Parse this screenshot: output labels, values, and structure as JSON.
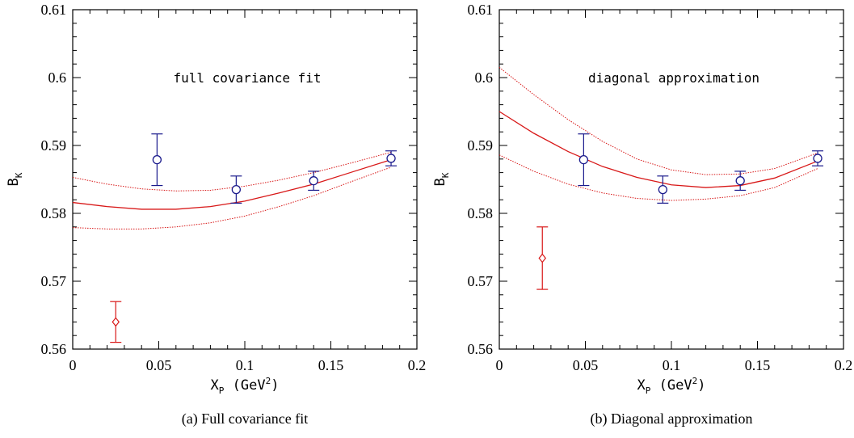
{
  "chart_data": [
    {
      "type": "scatter",
      "annotation": "full covariance fit",
      "caption": "(a)  Full covariance fit",
      "xlabel": {
        "main": "X",
        "sub": "P",
        "units_pre": " (GeV",
        "units_sup": "2",
        "units_post": ")"
      },
      "ylabel": {
        "main": "B",
        "sub": "K"
      },
      "xlim": [
        0,
        0.2
      ],
      "ylim": [
        0.56,
        0.61
      ],
      "x_ticks": [
        0,
        0.05,
        0.1,
        0.15,
        0.2
      ],
      "x_tick_labels": [
        "0",
        "0.05",
        "0.1",
        "0.15",
        "0.2"
      ],
      "y_ticks": [
        0.56,
        0.57,
        0.58,
        0.59,
        0.6,
        0.61
      ],
      "y_tick_labels": [
        "0.56",
        "0.57",
        "0.58",
        "0.59",
        "0.6",
        "0.61"
      ],
      "data_points": [
        {
          "x": 0.049,
          "y": 0.5879,
          "err": 0.0038
        },
        {
          "x": 0.095,
          "y": 0.5835,
          "err": 0.002
        },
        {
          "x": 0.14,
          "y": 0.5848,
          "err": 0.0014
        },
        {
          "x": 0.185,
          "y": 0.5881,
          "err": 0.0011
        }
      ],
      "extrapolated_point": {
        "x": 0.025,
        "y": 0.564,
        "err": 0.003
      },
      "fit_curve": {
        "x": [
          0,
          0.02,
          0.04,
          0.06,
          0.08,
          0.1,
          0.12,
          0.14,
          0.16,
          0.185
        ],
        "center": [
          0.5816,
          0.581,
          0.5806,
          0.5806,
          0.581,
          0.5818,
          0.583,
          0.5843,
          0.5859,
          0.5879
        ],
        "upper": [
          0.5853,
          0.5843,
          0.5836,
          0.5833,
          0.5834,
          0.584,
          0.5849,
          0.586,
          0.5873,
          0.589
        ],
        "lower": [
          0.5779,
          0.5777,
          0.5777,
          0.578,
          0.5786,
          0.5796,
          0.581,
          0.5826,
          0.5845,
          0.5868
        ]
      },
      "colors": {
        "data": "#1a1a8c",
        "fit": "#d81818"
      }
    },
    {
      "type": "scatter",
      "annotation": "diagonal approximation",
      "caption": "(b)  Diagonal approximation",
      "xlabel": {
        "main": "X",
        "sub": "P",
        "units_pre": " (GeV",
        "units_sup": "2",
        "units_post": ")"
      },
      "ylabel": {
        "main": "B",
        "sub": "K"
      },
      "xlim": [
        0,
        0.2
      ],
      "ylim": [
        0.56,
        0.61
      ],
      "x_ticks": [
        0,
        0.05,
        0.1,
        0.15,
        0.2
      ],
      "x_tick_labels": [
        "0",
        "0.05",
        "0.1",
        "0.15",
        "0.2"
      ],
      "y_ticks": [
        0.56,
        0.57,
        0.58,
        0.59,
        0.6,
        0.61
      ],
      "y_tick_labels": [
        "0.56",
        "0.57",
        "0.58",
        "0.59",
        "0.6",
        "0.61"
      ],
      "data_points": [
        {
          "x": 0.049,
          "y": 0.5879,
          "err": 0.0038
        },
        {
          "x": 0.095,
          "y": 0.5835,
          "err": 0.002
        },
        {
          "x": 0.14,
          "y": 0.5848,
          "err": 0.0014
        },
        {
          "x": 0.185,
          "y": 0.5881,
          "err": 0.0011
        }
      ],
      "extrapolated_point": {
        "x": 0.025,
        "y": 0.5734,
        "err": 0.0046
      },
      "fit_curve": {
        "x": [
          0,
          0.02,
          0.04,
          0.06,
          0.08,
          0.1,
          0.12,
          0.14,
          0.16,
          0.185
        ],
        "center": [
          0.595,
          0.5918,
          0.5891,
          0.5869,
          0.5853,
          0.5842,
          0.5838,
          0.5841,
          0.5852,
          0.5877
        ],
        "upper": [
          0.6015,
          0.5975,
          0.5938,
          0.5906,
          0.588,
          0.5864,
          0.5857,
          0.5858,
          0.5866,
          0.5889
        ],
        "lower": [
          0.5886,
          0.5862,
          0.5843,
          0.583,
          0.5822,
          0.5819,
          0.5821,
          0.5826,
          0.5838,
          0.5866
        ]
      },
      "colors": {
        "data": "#1a1a8c",
        "fit": "#d81818"
      }
    }
  ]
}
